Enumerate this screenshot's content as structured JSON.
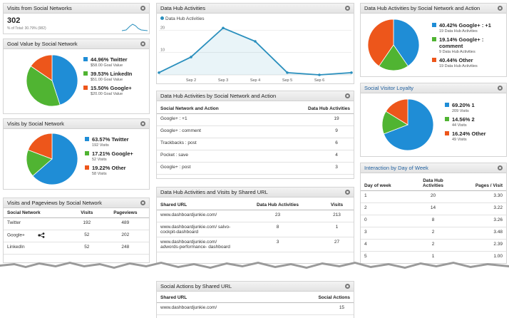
{
  "colors": {
    "blue": "#1f8dd6",
    "green": "#50b432",
    "orange": "#ed561b",
    "line": "#2a8fbd"
  },
  "visits_widget": {
    "title": "Visits from Social Networks",
    "value": "302",
    "subtitle": "% of Total: 30.79% (982)"
  },
  "goal_widget": {
    "title": "Goal Value by Social Network",
    "slices": [
      {
        "pct": "44.96%",
        "name": "Twitter",
        "sub": "$58.00 Goal Value",
        "value": 44.96,
        "color": "#1f8dd6"
      },
      {
        "pct": "39.53%",
        "name": "LinkedIn",
        "sub": "$51.00 Goal Value",
        "value": 39.53,
        "color": "#50b432"
      },
      {
        "pct": "15.50%",
        "name": "Google+",
        "sub": "$20.00 Goal Value",
        "value": 15.5,
        "color": "#ed561b"
      }
    ]
  },
  "visits_by_network": {
    "title": "Visits by Social Network",
    "slices": [
      {
        "pct": "63.57%",
        "name": "Twitter",
        "sub": "192 Visits",
        "value": 63.57,
        "color": "#1f8dd6"
      },
      {
        "pct": "17.21%",
        "name": "Google+",
        "sub": "52 Visits",
        "value": 17.21,
        "color": "#50b432"
      },
      {
        "pct": "19.22%",
        "name": "Other",
        "sub": "58 Visits",
        "value": 19.22,
        "color": "#ed561b"
      }
    ]
  },
  "pageviews_widget": {
    "title": "Visits and Pageviews by Social Network",
    "headers": [
      "Social Network",
      "Visits",
      "Pageviews"
    ],
    "rows": [
      {
        "network": "Twitter",
        "visits": "192",
        "pageviews": "489"
      },
      {
        "network": "Google+",
        "visits": "52",
        "pageviews": "202"
      },
      {
        "network": "LinkedIn",
        "visits": "52",
        "pageviews": "248"
      }
    ]
  },
  "hub_activities": {
    "title": "Data Hub Activities",
    "legend": "Data Hub Activities"
  },
  "chart_data": {
    "type": "line",
    "x": [
      "Sep 1",
      "Sep 2",
      "Sep 3",
      "Sep 4",
      "Sep 5",
      "Sep 6",
      "Sep 7"
    ],
    "xticks": [
      "Sep 2",
      "Sep 3",
      "Sep 4",
      "Sep 5",
      "Sep 6"
    ],
    "series": [
      {
        "name": "Data Hub Activities",
        "values": [
          1,
          8,
          21,
          15,
          1,
          0,
          1
        ]
      }
    ],
    "yticks": [
      "20",
      "10"
    ],
    "ylim": [
      0,
      23
    ],
    "grid": true,
    "legend": "top-left"
  },
  "hub_by_network": {
    "title": "Data Hub Activities by Social Network and Action",
    "headers": [
      "Social Network and Action",
      "Data Hub Activities"
    ],
    "rows": [
      {
        "label": "Google+ : +1",
        "value": "19"
      },
      {
        "label": "Google+ : comment",
        "value": "9"
      },
      {
        "label": "Trackbacks : post",
        "value": "6"
      },
      {
        "label": "Pocket : save",
        "value": "4"
      },
      {
        "label": "Google+ : post",
        "value": "3"
      }
    ]
  },
  "hub_by_url": {
    "title": "Data Hub Activities and Visits by Shared URL",
    "headers": [
      "Shared URL",
      "Data Hub Activities",
      "Visits"
    ],
    "rows": [
      {
        "url": "www.dashboardjunkie.com/",
        "activities": "23",
        "visits": "213"
      },
      {
        "url": "www.dashboardjunkie.com/ salvo-cockpit-dashboard",
        "activities": "8",
        "visits": "1"
      },
      {
        "url": "www.dashboardjunkie.com/ adwords-performance- dashboard",
        "activities": "3",
        "visits": "27"
      }
    ]
  },
  "social_actions": {
    "title": "Social Actions by Shared URL",
    "headers": [
      "Shared URL",
      "Social Actions"
    ],
    "rows": [
      {
        "url": "www.dashboardjunkie.com/",
        "value": "15"
      }
    ]
  },
  "hub_pie": {
    "title": "Data Hub Activities by Social Network and Action",
    "slices": [
      {
        "pct": "40.42%",
        "name": "Google+ : +1",
        "sub": "19 Data Hub Activities",
        "value": 40.42,
        "color": "#1f8dd6"
      },
      {
        "pct": "19.14%",
        "name": "Google+ : comment",
        "sub": "9 Data Hub Activities",
        "value": 19.14,
        "color": "#50b432"
      },
      {
        "pct": "40.44%",
        "name": "Other",
        "sub": "19 Data Hub Activities",
        "value": 40.44,
        "color": "#ed561b"
      }
    ]
  },
  "loyalty": {
    "title": "Social Visitor Loyalty",
    "slices": [
      {
        "pct": "69.20%",
        "name": "1",
        "sub": "209 Visits",
        "value": 69.2,
        "color": "#1f8dd6"
      },
      {
        "pct": "14.56%",
        "name": "2",
        "sub": "44 Visits",
        "value": 14.56,
        "color": "#50b432"
      },
      {
        "pct": "16.24%",
        "name": "Other",
        "sub": "49 Visits",
        "value": 16.24,
        "color": "#ed561b"
      }
    ]
  },
  "interaction": {
    "title": "Interaction by Day of Week",
    "headers": [
      "Day of week",
      "Data Hub Activities",
      "Pages / Visit"
    ],
    "rows": [
      {
        "day": "1",
        "activities": "20",
        "pages": "3.30"
      },
      {
        "day": "2",
        "activities": "14",
        "pages": "3.22"
      },
      {
        "day": "0",
        "activities": "8",
        "pages": "3.26"
      },
      {
        "day": "3",
        "activities": "2",
        "pages": "3.48"
      },
      {
        "day": "4",
        "activities": "2",
        "pages": "2.39"
      },
      {
        "day": "5",
        "activities": "1",
        "pages": "1.00"
      }
    ]
  }
}
